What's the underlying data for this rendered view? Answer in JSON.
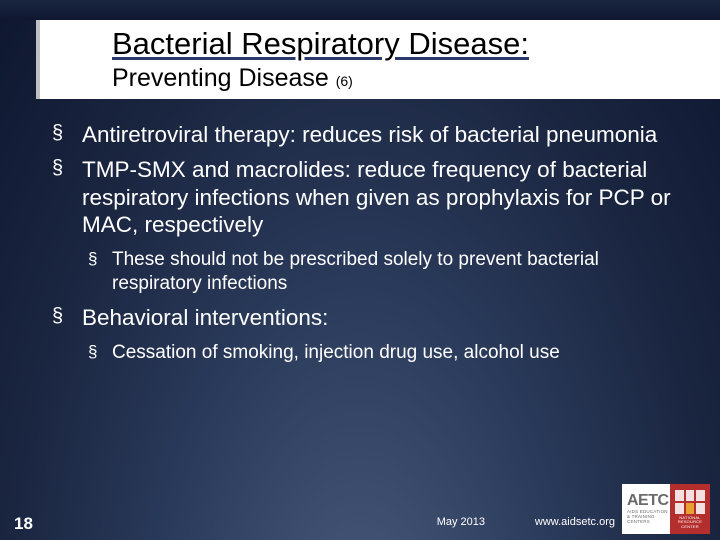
{
  "colors": {
    "background_gradient_start": "#4a5a7a",
    "background_gradient_mid": "#2a3a5a",
    "background_gradient_end": "#0f1730",
    "titlebox_background": "#ffffff",
    "titlebox_border": "#c0c0c0",
    "title_text": "#000000",
    "title_underline": "#2a3a6a",
    "body_text": "#ffffff",
    "logo_background": "#ffffff",
    "logo_red": "#b52e2e",
    "logo_gray": "#6b6b6b",
    "logo_accent": "#e8a030"
  },
  "typography": {
    "font_family": "Arial",
    "title_size": 31,
    "subtitle_size": 25,
    "subscript_size": 14,
    "lvl1_size": 22.5,
    "lvl2_size": 19,
    "footer_small_size": 11,
    "slidenum_size": 17
  },
  "header": {
    "title": "Bacterial Respiratory Disease:",
    "subtitle": "Preventing Disease ",
    "subscript": "(6)"
  },
  "bullets": {
    "marker": "§",
    "items": [
      {
        "text": "Antiretroviral therapy: reduces risk of bacterial pneumonia",
        "indent_extra": true
      },
      {
        "text": "TMP-SMX and macrolides: reduce frequency of bacterial respiratory infections when given as prophylaxis for PCP or MAC, respectively",
        "children": [
          {
            "text": "These should not be prescribed solely to prevent bacterial respiratory infections"
          }
        ]
      },
      {
        "text": "Behavioral interventions:",
        "children": [
          {
            "text": "Cessation of smoking, injection drug use, alcohol use"
          }
        ]
      }
    ]
  },
  "footer": {
    "slide_number": "18",
    "date": "May 2013",
    "url": "www.aidsetc.org",
    "logo": {
      "brand": "AETC",
      "brand_sub": "AIDS EDUCATION & TRAINING CENTERS",
      "right_text": "NATIONAL RESOURCE CENTER"
    }
  }
}
